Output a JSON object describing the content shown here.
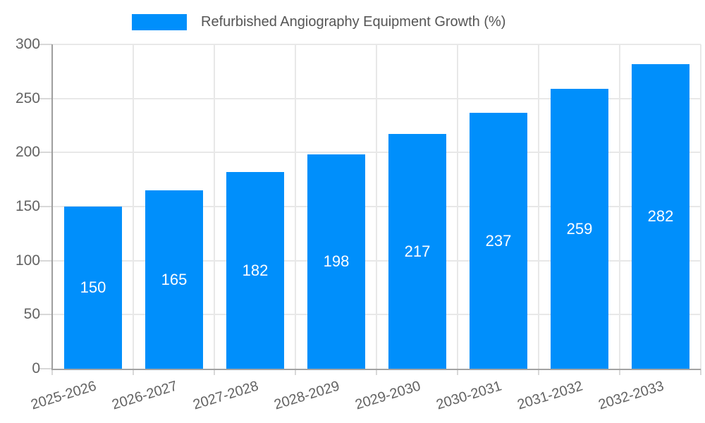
{
  "chart_data": {
    "type": "bar",
    "title": "Refurbished Angiography Equipment Growth (%)",
    "categories": [
      "2025-2026",
      "2026-2027",
      "2027-2028",
      "2028-2029",
      "2029-2030",
      "2030-2031",
      "2031-2032",
      "2032-2033"
    ],
    "values": [
      150,
      165,
      182,
      198,
      217,
      237,
      259,
      282
    ],
    "xlabel": "",
    "ylabel": "",
    "ylim": [
      0,
      300
    ],
    "yticks": [
      0,
      50,
      100,
      150,
      200,
      250,
      300
    ],
    "grid": true,
    "legend_position": "top",
    "colors": {
      "bar": "#008FFB",
      "value_label": "#ffffff",
      "axis_text": "#636363",
      "legend_text": "#555555",
      "gridline": "#e8e8e8",
      "axis_line": "#a3a3a3",
      "y_axis_line": "#9e9e9e",
      "tick": "#d8d8d8"
    }
  }
}
